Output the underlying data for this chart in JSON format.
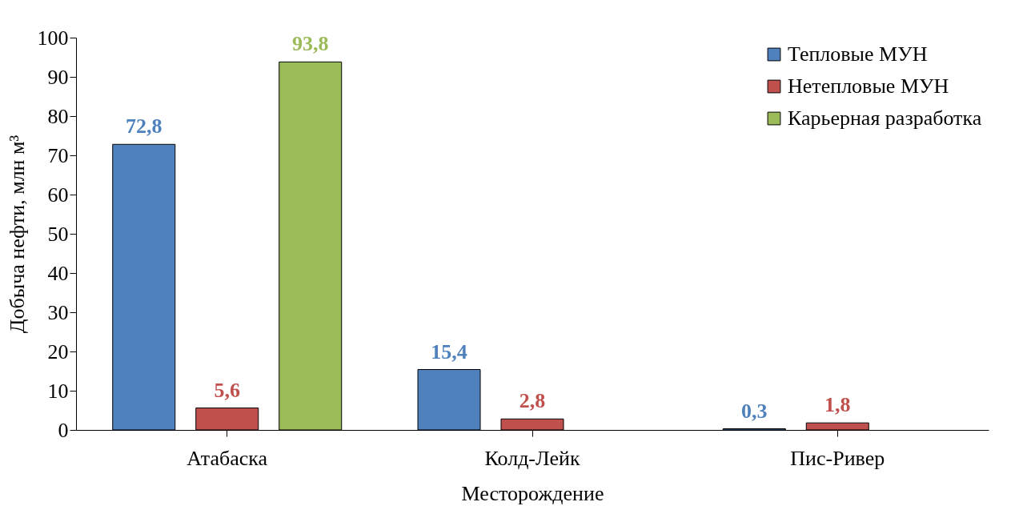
{
  "chart_data": {
    "type": "bar",
    "xlabel": "Месторождение",
    "ylabel": "Добыча нефти, млн м³",
    "categories": [
      "Атабаска",
      "Колд-Лейк",
      "Пис-Ривер"
    ],
    "series": [
      {
        "name": "Тепловые МУН",
        "color": "#4f81bd",
        "values": [
          72.8,
          15.4,
          0.3
        ],
        "value_labels": [
          "72,8",
          "15,4",
          "0,3"
        ]
      },
      {
        "name": "Нетепловые МУН",
        "color": "#c0504d",
        "values": [
          5.6,
          2.8,
          1.8
        ],
        "value_labels": [
          "5,6",
          "2,8",
          "1,8"
        ]
      },
      {
        "name": "Карьерная разработка",
        "color": "#9bbb59",
        "values": [
          93.8,
          null,
          null
        ],
        "value_labels": [
          "93,8",
          null,
          null
        ]
      }
    ],
    "ylim": [
      0,
      100
    ],
    "yticks": [
      0,
      10,
      20,
      30,
      40,
      50,
      60,
      70,
      80,
      90,
      100
    ],
    "grid": false,
    "legend": "top right"
  }
}
